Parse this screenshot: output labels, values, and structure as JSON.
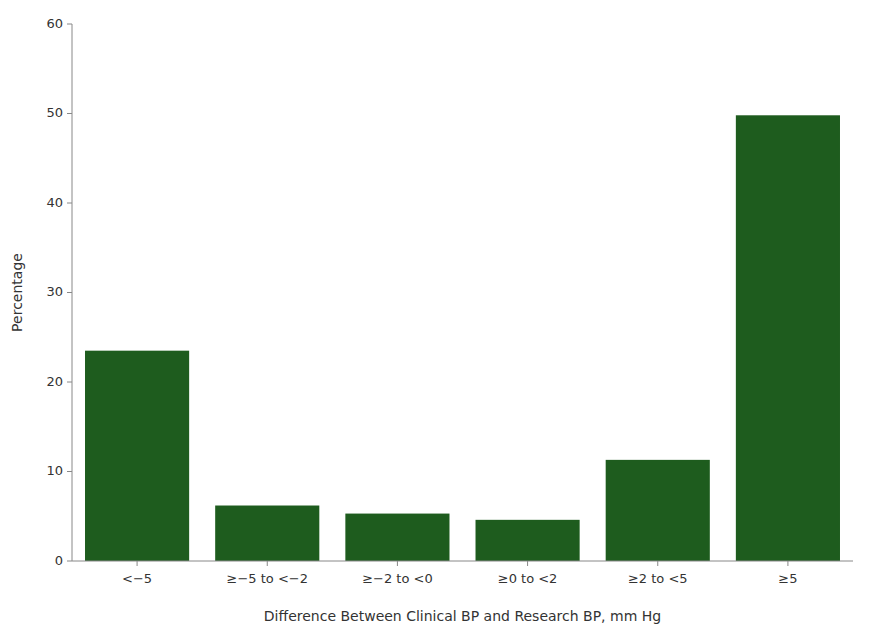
{
  "chart_data": {
    "type": "bar",
    "categories": [
      "<−5",
      "≥−5 to <−2",
      "≥−2 to <0",
      "≥0 to <2",
      "≥2 to <5",
      "≥5"
    ],
    "values": [
      23.5,
      6.2,
      5.3,
      4.6,
      11.3,
      49.8
    ],
    "color": "#1e5c1e",
    "xlabel": "Difference Between Clinical BP and Research BP, mm Hg",
    "ylabel": "Percentage",
    "ylim": [
      0,
      60
    ],
    "yticks": [
      0,
      10,
      20,
      30,
      40,
      50,
      60
    ],
    "grid": false
  }
}
